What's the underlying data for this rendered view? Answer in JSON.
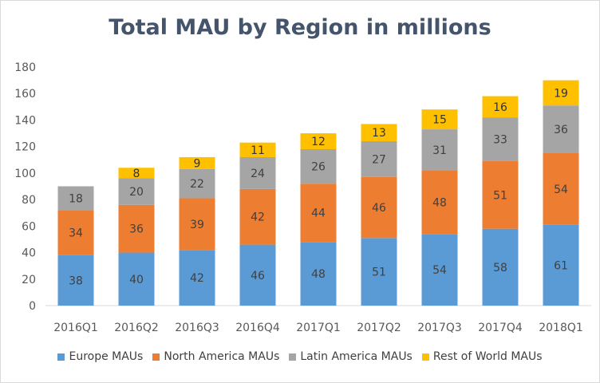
{
  "chart_data": {
    "type": "bar",
    "stacked": true,
    "title": "Total MAU by Region in millions",
    "xlabel": "",
    "ylabel": "",
    "ylim": [
      0,
      180
    ],
    "yticks": [
      0,
      20,
      40,
      60,
      80,
      100,
      120,
      140,
      160,
      180
    ],
    "grid": false,
    "legend_position": "bottom",
    "categories": [
      "2016Q1",
      "2016Q2",
      "2016Q3",
      "2016Q4",
      "2017Q1",
      "2017Q2",
      "2017Q3",
      "2017Q4",
      "2018Q1"
    ],
    "series": [
      {
        "name": "Europe MAUs",
        "color": "#5b9bd5",
        "values": [
          38,
          40,
          42,
          46,
          48,
          51,
          54,
          58,
          61
        ]
      },
      {
        "name": "North America MAUs",
        "color": "#ed7d31",
        "values": [
          34,
          36,
          39,
          42,
          44,
          46,
          48,
          51,
          54
        ]
      },
      {
        "name": "Latin America MAUs",
        "color": "#a5a5a5",
        "values": [
          18,
          20,
          22,
          24,
          26,
          27,
          31,
          33,
          36
        ]
      },
      {
        "name": "Rest of World MAUs",
        "color": "#ffc000",
        "values": [
          null,
          8,
          9,
          11,
          12,
          13,
          15,
          16,
          19
        ]
      }
    ]
  }
}
